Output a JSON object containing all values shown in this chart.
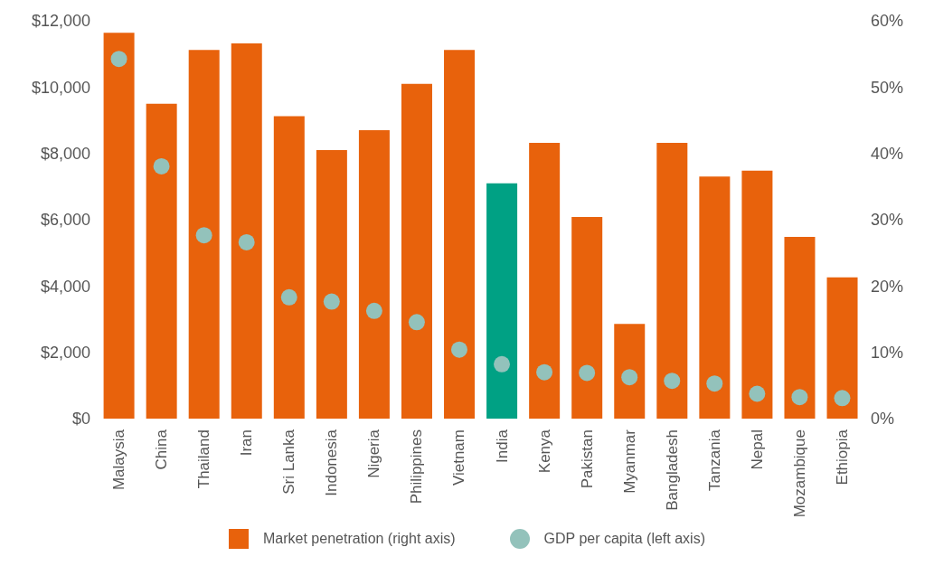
{
  "chart_data": {
    "type": "bar",
    "categories": [
      "Malaysia",
      "China",
      "Thailand",
      "Iran",
      "Sri Lanka",
      "Indonesia",
      "Nigeria",
      "Philippines",
      "Vietnam",
      "India",
      "Kenya",
      "Pakistan",
      "Myanmar",
      "Bangladesh",
      "Tanzania",
      "Nepal",
      "Mozambique",
      "Ethiopia"
    ],
    "series": [
      {
        "name": "Market penetration (right axis)",
        "axis": "y2",
        "colors": [
          "#e8620c",
          "#e8620c",
          "#e8620c",
          "#e8620c",
          "#e8620c",
          "#e8620c",
          "#e8620c",
          "#e8620c",
          "#e8620c",
          "#00a184",
          "#e8620c",
          "#e8620c",
          "#e8620c",
          "#e8620c",
          "#e8620c",
          "#e8620c",
          "#e8620c",
          "#e8620c"
        ],
        "values": [
          58.2,
          47.5,
          55.6,
          56.6,
          45.6,
          40.5,
          43.5,
          50.5,
          55.6,
          35.5,
          41.6,
          30.4,
          14.3,
          41.6,
          36.5,
          37.4,
          27.4,
          21.3
        ]
      },
      {
        "name": "GDP per capita (left axis)",
        "type": "scatter",
        "axis": "y",
        "color": "#93c2bb",
        "values": [
          10850,
          7610,
          5530,
          5320,
          3660,
          3530,
          3250,
          2910,
          2080,
          1640,
          1400,
          1380,
          1250,
          1140,
          1060,
          750,
          650,
          620
        ]
      }
    ],
    "ylim": [
      0,
      12000
    ],
    "yticks": [
      {
        "value": 0,
        "label": "$0"
      },
      {
        "value": 2000,
        "label": "$2,000"
      },
      {
        "value": 4000,
        "label": "$4,000"
      },
      {
        "value": 6000,
        "label": "$6,000"
      },
      {
        "value": 8000,
        "label": "$8,000"
      },
      {
        "value": 10000,
        "label": "$10,000"
      },
      {
        "value": 12000,
        "label": "$12,000"
      }
    ],
    "y2lim": [
      0,
      60
    ],
    "y2ticks": [
      {
        "value": 0,
        "label": "0%"
      },
      {
        "value": 10,
        "label": "10%"
      },
      {
        "value": 20,
        "label": "20%"
      },
      {
        "value": 30,
        "label": "30%"
      },
      {
        "value": 40,
        "label": "40%"
      },
      {
        "value": 50,
        "label": "50%"
      },
      {
        "value": 60,
        "label": "60%"
      }
    ],
    "legend": "bottom",
    "marker": "circle"
  }
}
